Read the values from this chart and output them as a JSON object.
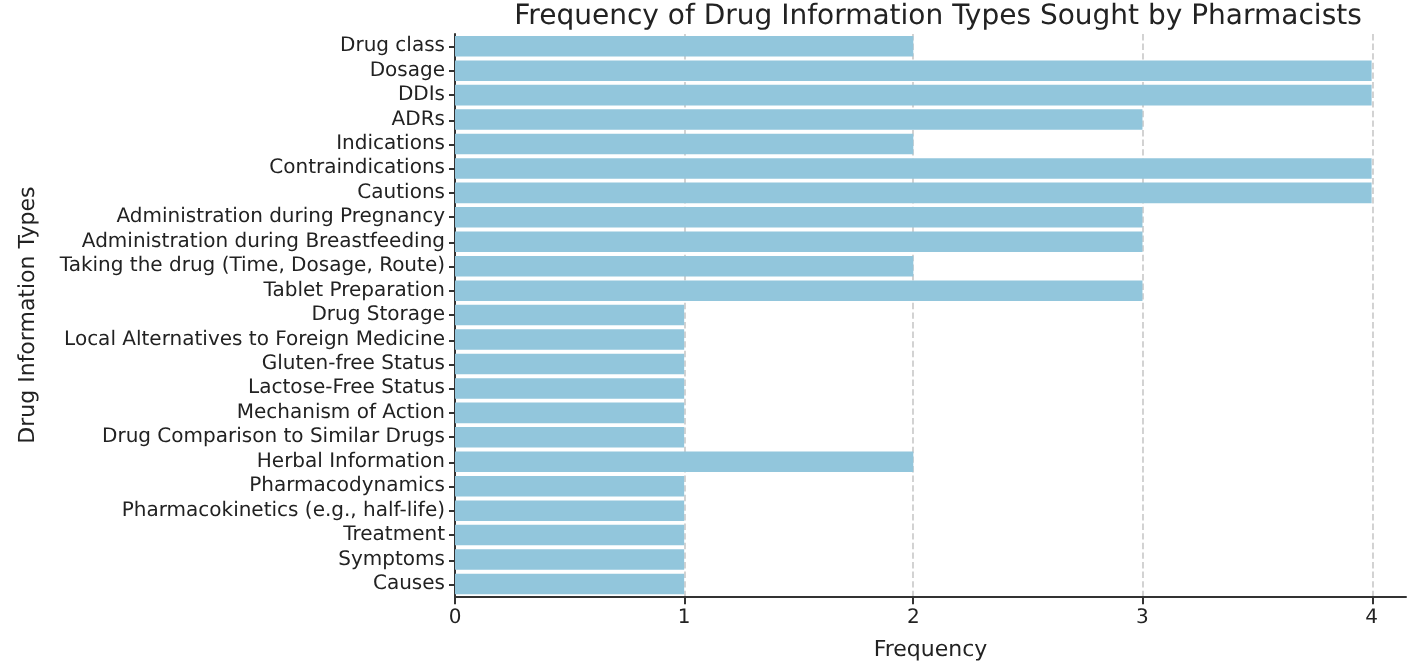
{
  "chart_data": {
    "type": "bar",
    "orientation": "horizontal",
    "title": "Frequency of Drug Information Types Sought by Pharmacists",
    "xlabel": "Frequency",
    "ylabel": "Drug Information Types",
    "categories": [
      "Drug class",
      "Dosage",
      "DDIs",
      "ADRs",
      "Indications",
      "Contraindications",
      "Cautions",
      "Administration during Pregnancy",
      "Administration during Breastfeeding",
      "Taking the drug (Time, Dosage, Route)",
      "Tablet Preparation",
      "Drug Storage",
      "Local Alternatives to Foreign Medicine",
      "Gluten-free Status",
      "Lactose-Free Status",
      "Mechanism of Action",
      "Drug Comparison to Similar Drugs",
      "Herbal Information",
      "Pharmacodynamics",
      "Pharmacokinetics (e.g., half-life)",
      "Treatment",
      "Symptoms",
      "Causes"
    ],
    "values": [
      2,
      4,
      4,
      3,
      2,
      4,
      4,
      3,
      3,
      2,
      3,
      1,
      1,
      1,
      1,
      1,
      1,
      2,
      1,
      1,
      1,
      1,
      1
    ],
    "color": "#92c6dc",
    "xlim": [
      0,
      4.15
    ],
    "xticks": [
      0,
      1,
      2,
      3,
      4
    ],
    "grid": "x"
  }
}
